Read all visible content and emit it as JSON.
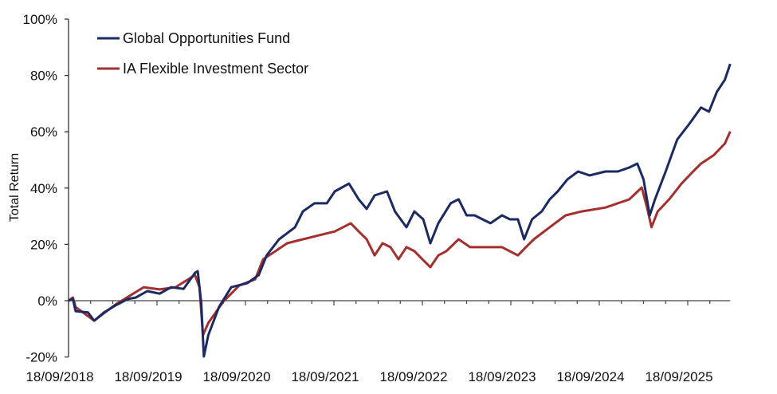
{
  "chart_data": {
    "type": "line",
    "title": "",
    "xlabel": "",
    "ylabel": "Total Return",
    "x_units": "years since 18/09/2018",
    "xlim": [
      0,
      7.48
    ],
    "ylim": [
      -20,
      100
    ],
    "y_ticks": [
      -20,
      0,
      20,
      40,
      60,
      80,
      100
    ],
    "y_tick_labels": [
      "-20%",
      "0%",
      "20%",
      "40%",
      "60%",
      "80%",
      "100%"
    ],
    "x_tick_labels": [
      "18/09/2018",
      "18/09/2019",
      "18/09/2020",
      "18/09/2021",
      "18/09/2022",
      "18/09/2023",
      "18/09/2024",
      "18/09/2025"
    ],
    "grid": false,
    "legend_position": "top-left",
    "series": [
      {
        "name": "Global Opportunities Fund",
        "color": "#1c2a63",
        "points": [
          [
            0,
            0
          ],
          [
            0.05,
            0.6
          ],
          [
            0.08,
            -3.7
          ],
          [
            0.22,
            -4.2
          ],
          [
            0.29,
            -7.1
          ],
          [
            0.4,
            -4.2
          ],
          [
            0.53,
            -1.7
          ],
          [
            0.67,
            0.6
          ],
          [
            0.76,
            1.1
          ],
          [
            0.89,
            3.4
          ],
          [
            1.03,
            2.5
          ],
          [
            1.16,
            4.8
          ],
          [
            1.3,
            4.2
          ],
          [
            1.43,
            9.9
          ],
          [
            1.46,
            10.5
          ],
          [
            1.5,
            -0.8
          ],
          [
            1.53,
            -19.8
          ],
          [
            1.58,
            -12.2
          ],
          [
            1.7,
            -2.3
          ],
          [
            1.84,
            4.8
          ],
          [
            2.02,
            6.2
          ],
          [
            2.15,
            9.1
          ],
          [
            2.24,
            16.1
          ],
          [
            2.38,
            21.8
          ],
          [
            2.56,
            26.1
          ],
          [
            2.65,
            31.7
          ],
          [
            2.78,
            34.6
          ],
          [
            2.92,
            34.6
          ],
          [
            3.01,
            38.8
          ],
          [
            3.17,
            41.6
          ],
          [
            3.28,
            36.0
          ],
          [
            3.37,
            32.6
          ],
          [
            3.46,
            37.4
          ],
          [
            3.6,
            38.8
          ],
          [
            3.69,
            31.7
          ],
          [
            3.82,
            26.1
          ],
          [
            3.91,
            31.7
          ],
          [
            4.01,
            28.9
          ],
          [
            4.09,
            20.4
          ],
          [
            4.18,
            27.5
          ],
          [
            4.32,
            34.6
          ],
          [
            4.41,
            36.0
          ],
          [
            4.5,
            30.3
          ],
          [
            4.59,
            30.3
          ],
          [
            4.68,
            28.9
          ],
          [
            4.77,
            27.5
          ],
          [
            4.9,
            30.3
          ],
          [
            4.99,
            28.9
          ],
          [
            5.08,
            28.9
          ],
          [
            5.15,
            21.8
          ],
          [
            5.24,
            28.9
          ],
          [
            5.35,
            31.7
          ],
          [
            5.44,
            36.0
          ],
          [
            5.53,
            38.8
          ],
          [
            5.64,
            43.1
          ],
          [
            5.76,
            45.9
          ],
          [
            5.89,
            44.5
          ],
          [
            6.07,
            45.9
          ],
          [
            6.21,
            45.9
          ],
          [
            6.34,
            47.3
          ],
          [
            6.43,
            48.7
          ],
          [
            6.5,
            43.1
          ],
          [
            6.57,
            30.3
          ],
          [
            6.63,
            36.0
          ],
          [
            6.75,
            45.9
          ],
          [
            6.88,
            57.2
          ],
          [
            7.02,
            62.9
          ],
          [
            7.15,
            68.6
          ],
          [
            7.24,
            67.1
          ],
          [
            7.33,
            74.2
          ],
          [
            7.42,
            78.5
          ],
          [
            7.48,
            84.1
          ]
        ]
      },
      {
        "name": "IA Flexible Investment Sector",
        "color": "#a3302f",
        "points": [
          [
            0,
            0
          ],
          [
            0.05,
            1.1
          ],
          [
            0.08,
            -2.3
          ],
          [
            0.29,
            -7.1
          ],
          [
            0.53,
            -1.4
          ],
          [
            0.85,
            4.8
          ],
          [
            1.03,
            4.0
          ],
          [
            1.21,
            4.8
          ],
          [
            1.43,
            9.1
          ],
          [
            1.48,
            4.8
          ],
          [
            1.52,
            -12.2
          ],
          [
            1.58,
            -7.9
          ],
          [
            1.75,
            -0.3
          ],
          [
            1.93,
            5.4
          ],
          [
            2.11,
            7.6
          ],
          [
            2.2,
            14.7
          ],
          [
            2.34,
            17.6
          ],
          [
            2.47,
            20.4
          ],
          [
            2.65,
            21.8
          ],
          [
            2.83,
            23.2
          ],
          [
            3.01,
            24.6
          ],
          [
            3.19,
            27.5
          ],
          [
            3.28,
            24.6
          ],
          [
            3.37,
            21.8
          ],
          [
            3.46,
            16.1
          ],
          [
            3.55,
            20.4
          ],
          [
            3.64,
            19.0
          ],
          [
            3.73,
            14.7
          ],
          [
            3.82,
            19.0
          ],
          [
            3.91,
            17.6
          ],
          [
            4.0,
            14.7
          ],
          [
            4.09,
            11.9
          ],
          [
            4.18,
            16.1
          ],
          [
            4.27,
            17.6
          ],
          [
            4.41,
            21.8
          ],
          [
            4.54,
            19.0
          ],
          [
            4.72,
            19.0
          ],
          [
            4.9,
            19.0
          ],
          [
            5.08,
            16.1
          ],
          [
            5.17,
            19.0
          ],
          [
            5.26,
            21.8
          ],
          [
            5.44,
            26.1
          ],
          [
            5.62,
            30.3
          ],
          [
            5.8,
            31.7
          ],
          [
            6.07,
            33.1
          ],
          [
            6.34,
            36.0
          ],
          [
            6.48,
            40.2
          ],
          [
            6.54,
            33.1
          ],
          [
            6.59,
            26.1
          ],
          [
            6.66,
            31.7
          ],
          [
            6.79,
            36.0
          ],
          [
            6.93,
            41.6
          ],
          [
            7.06,
            45.9
          ],
          [
            7.15,
            48.7
          ],
          [
            7.29,
            51.6
          ],
          [
            7.42,
            55.8
          ],
          [
            7.48,
            60.1
          ]
        ]
      }
    ]
  }
}
